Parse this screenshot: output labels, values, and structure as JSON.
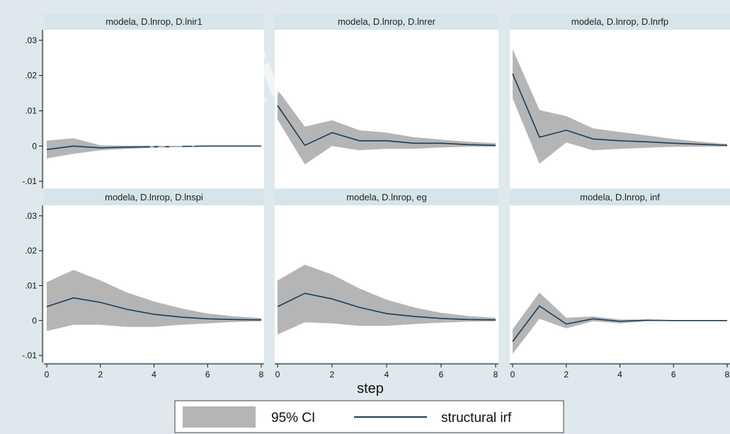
{
  "watermark": "Archi",
  "chart_data": {
    "type": "area",
    "xlabel": "step",
    "ylabel": "",
    "xlim": [
      0,
      8
    ],
    "ylim": [
      -0.012,
      0.033
    ],
    "x_ticks": [
      0,
      2,
      4,
      6,
      8
    ],
    "x_tick_labels": [
      "0",
      "2",
      "4",
      "6",
      "8"
    ],
    "y_ticks": [
      -0.01,
      0,
      0.01,
      0.02,
      0.03
    ],
    "y_tick_labels": [
      "-.01",
      "0",
      ".01",
      ".02",
      ".03"
    ],
    "grid": false,
    "legend_position": "bottom",
    "legend": [
      {
        "label": "95% CI",
        "kind": "area",
        "color": "#b5b5b5"
      },
      {
        "label": "structural irf",
        "kind": "line",
        "color": "#1b3c5a"
      }
    ],
    "x": [
      0,
      1,
      2,
      3,
      4,
      5,
      6,
      7,
      8
    ],
    "panels": [
      {
        "title": "modela, D.lnrop, D.lnir1",
        "irf": [
          -0.001,
          0.0,
          -0.0005,
          -0.0003,
          -0.0002,
          -0.0001,
          0.0,
          0.0,
          0.0
        ],
        "lower": [
          -0.0035,
          -0.0022,
          -0.0012,
          -0.0008,
          -0.0005,
          -0.0003,
          -0.0001,
          0.0,
          0.0
        ],
        "upper": [
          0.0015,
          0.0022,
          0.0002,
          0.0001,
          0.0001,
          0.0,
          0.0,
          0.0,
          0.0
        ]
      },
      {
        "title": "modela, D.lnrop, D.lnrer",
        "irf": [
          0.0115,
          0.0002,
          0.0038,
          0.0015,
          0.0015,
          0.0008,
          0.0008,
          0.0004,
          0.0002
        ],
        "lower": [
          0.0075,
          -0.0052,
          0.0,
          -0.0012,
          -0.0008,
          -0.0008,
          -0.0004,
          -0.0002,
          -0.0002
        ],
        "upper": [
          0.016,
          0.0055,
          0.0073,
          0.0045,
          0.0038,
          0.0025,
          0.0018,
          0.0012,
          0.0008
        ]
      },
      {
        "title": "modela, D.lnrop, D.lnrfp",
        "irf": [
          0.0205,
          0.0025,
          0.0045,
          0.002,
          0.0015,
          0.0012,
          0.0008,
          0.0005,
          0.0002
        ],
        "lower": [
          0.0135,
          -0.005,
          0.001,
          -0.0012,
          -0.0008,
          -0.0005,
          -0.0002,
          -0.0002,
          -0.0001
        ],
        "upper": [
          0.0275,
          0.0102,
          0.0085,
          0.005,
          0.004,
          0.003,
          0.002,
          0.0012,
          0.0006
        ]
      },
      {
        "title": "modela, D.lnrop, D.lnspi",
        "irf": [
          0.004,
          0.0065,
          0.0052,
          0.0032,
          0.0018,
          0.001,
          0.0005,
          0.0003,
          0.0002
        ],
        "lower": [
          -0.003,
          -0.0012,
          -0.0012,
          -0.0018,
          -0.0018,
          -0.0012,
          -0.0008,
          -0.0004,
          -0.0002
        ],
        "upper": [
          0.011,
          0.0145,
          0.0115,
          0.008,
          0.0055,
          0.0035,
          0.002,
          0.0012,
          0.0007
        ]
      },
      {
        "title": "modela, D.lnrop, eg",
        "irf": [
          0.004,
          0.0078,
          0.0062,
          0.0038,
          0.002,
          0.0012,
          0.0006,
          0.0003,
          0.0002
        ],
        "lower": [
          -0.004,
          -0.0005,
          -0.0008,
          -0.0015,
          -0.0015,
          -0.001,
          -0.0006,
          -0.0003,
          -0.0002
        ],
        "upper": [
          0.0115,
          0.016,
          0.0132,
          0.0092,
          0.006,
          0.0038,
          0.0022,
          0.0013,
          0.0008
        ]
      },
      {
        "title": "modela, D.lnrop, inf",
        "irf": [
          -0.006,
          0.0042,
          -0.001,
          0.0005,
          -0.0002,
          0.0001,
          0.0,
          0.0,
          0.0
        ],
        "lower": [
          -0.0095,
          0.0005,
          -0.0022,
          -0.0002,
          -0.0008,
          -0.0002,
          -0.0001,
          0.0,
          0.0
        ],
        "upper": [
          -0.0025,
          0.008,
          0.0008,
          0.0012,
          0.0003,
          0.0003,
          0.0001,
          0.0,
          0.0
        ]
      }
    ]
  }
}
